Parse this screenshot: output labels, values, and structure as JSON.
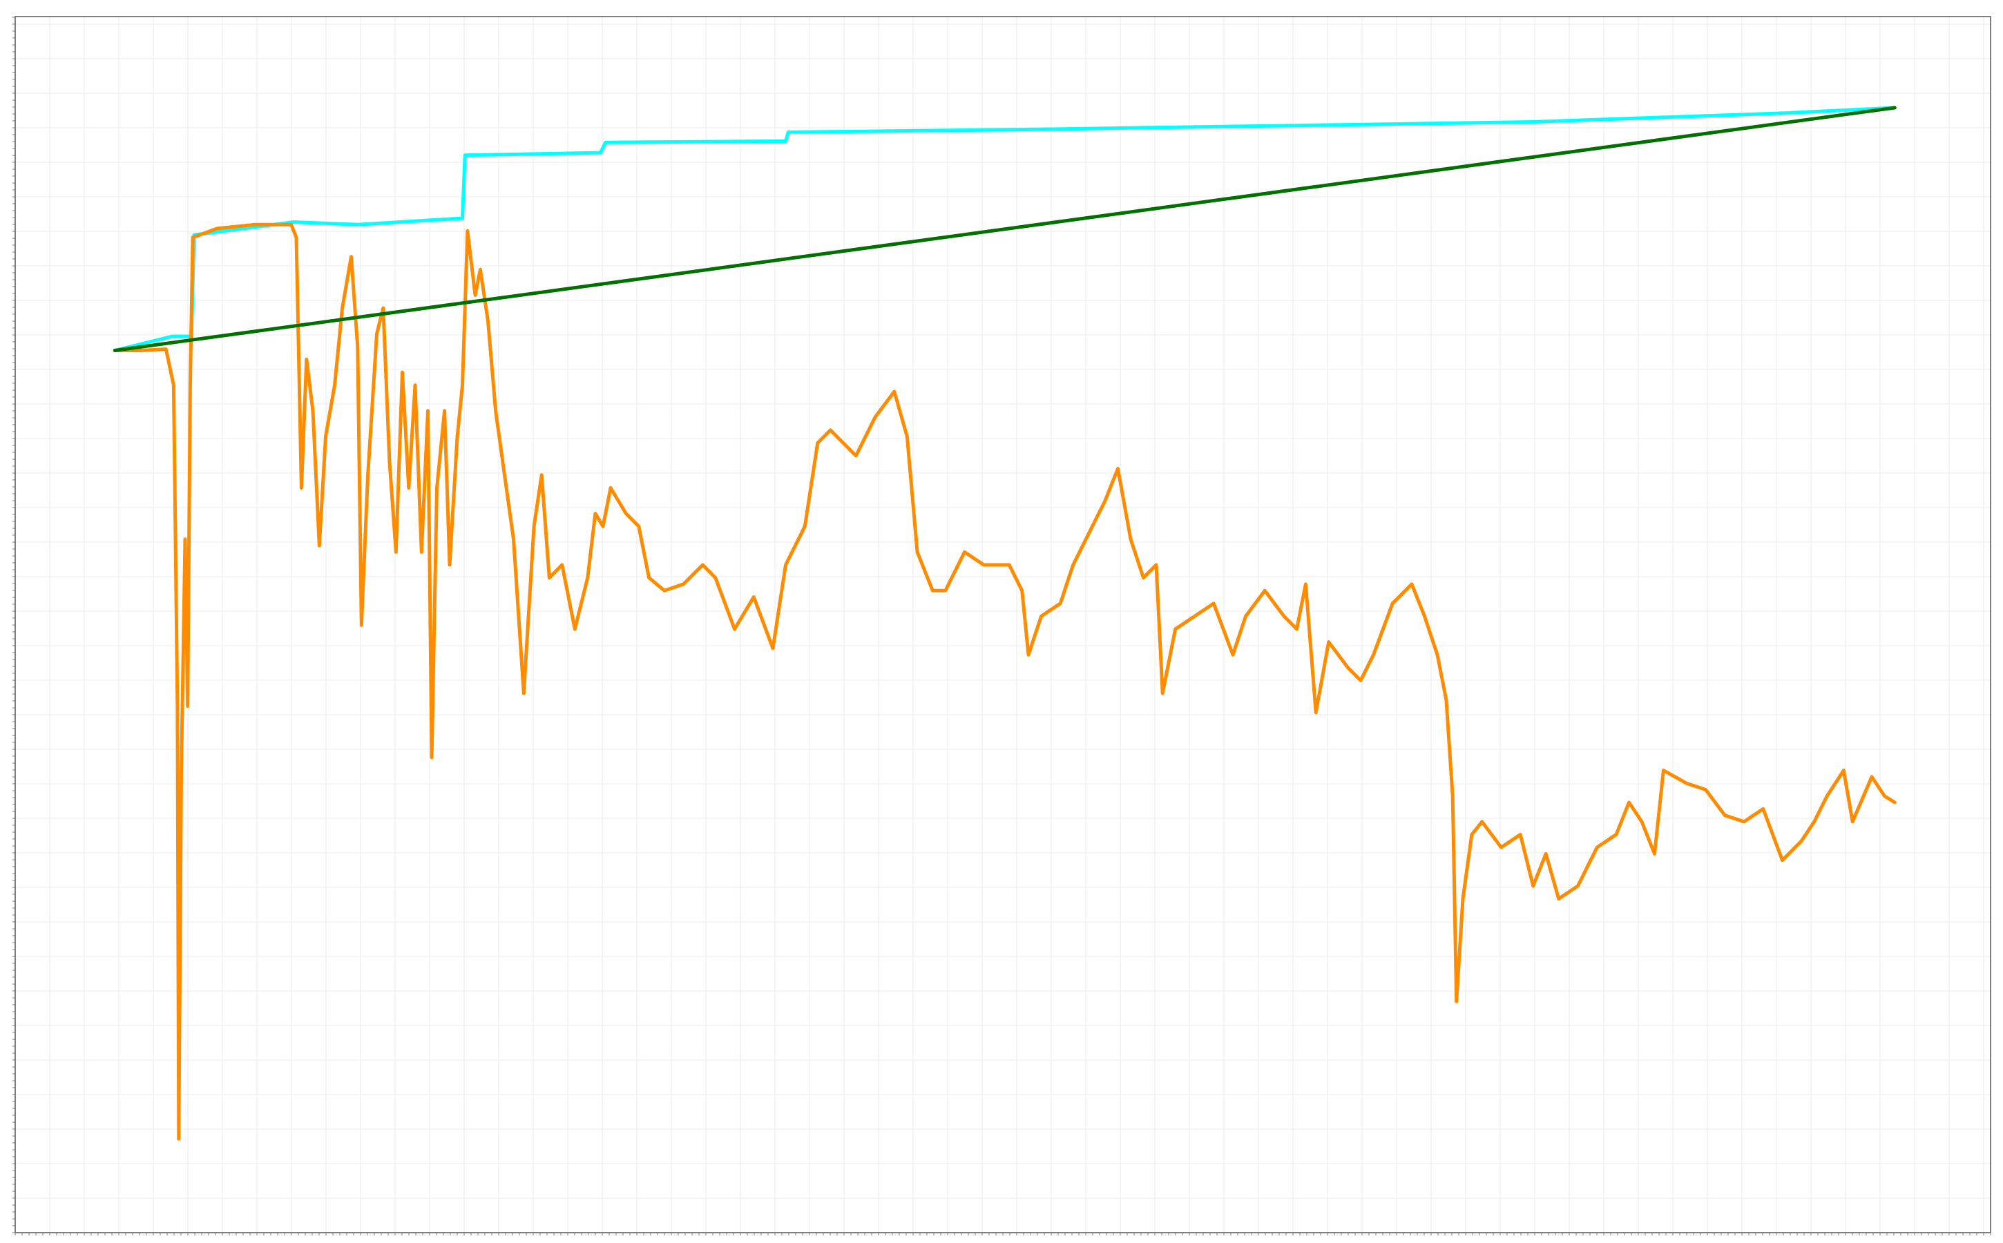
{
  "chart_data": {
    "type": "line",
    "xlim": [
      0,
      1546
    ],
    "ylim": [
      0,
      947
    ],
    "grid": true,
    "series": [
      {
        "color": "#00ffff",
        "x": [
          78,
          123,
          138,
          140,
          218,
          268,
          350,
          352,
          458,
          462,
          603,
          605,
          788,
          988,
          1188,
          1388,
          1471
        ],
        "values": [
          687,
          698,
          698,
          777,
          787,
          785,
          790,
          839,
          841,
          849,
          850,
          857,
          859,
          862,
          865,
          872,
          876
        ]
      },
      {
        "color": "#ff8c00",
        "x": [
          78,
          98,
          118,
          124,
          127,
          128,
          130,
          133,
          135,
          137,
          139,
          158,
          188,
          216,
          220,
          224,
          228,
          233,
          238,
          243,
          250,
          256,
          263,
          268,
          271,
          276,
          283,
          288,
          293,
          298,
          303,
          308,
          313,
          318,
          323,
          326,
          330,
          336,
          340,
          346,
          350,
          354,
          360,
          364,
          370,
          376,
          383,
          390,
          398,
          406,
          412,
          418,
          428,
          438,
          448,
          454,
          460,
          466,
          478,
          488,
          496,
          508,
          523,
          538,
          548,
          563,
          578,
          593,
          603,
          618,
          628,
          638,
          658,
          673,
          688,
          698,
          706,
          718,
          728,
          743,
          758,
          778,
          788,
          793,
          803,
          818,
          828,
          843,
          853,
          863,
          873,
          883,
          893,
          898,
          908,
          923,
          938,
          953,
          963,
          978,
          993,
          1003,
          1010,
          1018,
          1028,
          1043,
          1053,
          1063,
          1078,
          1093,
          1103,
          1113,
          1120,
          1125,
          1128,
          1133,
          1140,
          1148,
          1163,
          1178,
          1188,
          1198,
          1208,
          1223,
          1238,
          1253,
          1263,
          1273,
          1283,
          1290,
          1308,
          1323,
          1338,
          1353,
          1368,
          1383,
          1398,
          1408,
          1418,
          1431,
          1438,
          1453,
          1463,
          1471
        ],
        "values": [
          687,
          687,
          688,
          660,
          410,
          73,
          360,
          540,
          410,
          660,
          775,
          782,
          785,
          785,
          775,
          580,
          680,
          640,
          535,
          620,
          660,
          720,
          760,
          690,
          473,
          590,
          700,
          720,
          600,
          530,
          670,
          580,
          660,
          530,
          640,
          370,
          580,
          640,
          520,
          620,
          660,
          780,
          730,
          750,
          710,
          640,
          590,
          540,
          420,
          550,
          590,
          510,
          520,
          470,
          510,
          560,
          550,
          580,
          560,
          550,
          510,
          500,
          505,
          520,
          510,
          470,
          495,
          455,
          520,
          550,
          615,
          625,
          605,
          635,
          655,
          620,
          530,
          500,
          500,
          530,
          520,
          520,
          500,
          450,
          480,
          490,
          520,
          550,
          570,
          595,
          540,
          510,
          520,
          420,
          470,
          480,
          490,
          450,
          480,
          500,
          480,
          470,
          505,
          405,
          460,
          440,
          430,
          450,
          490,
          505,
          480,
          450,
          415,
          340,
          180,
          260,
          310,
          320,
          300,
          310,
          270,
          295,
          260,
          270,
          300,
          310,
          335,
          320,
          295,
          360,
          350,
          345,
          325,
          320,
          330,
          290,
          305,
          320,
          340,
          360,
          320,
          355,
          340,
          335
        ]
      },
      {
        "color": "#007000",
        "x": [
          78,
          1471
        ],
        "values": [
          687,
          876
        ]
      }
    ]
  }
}
